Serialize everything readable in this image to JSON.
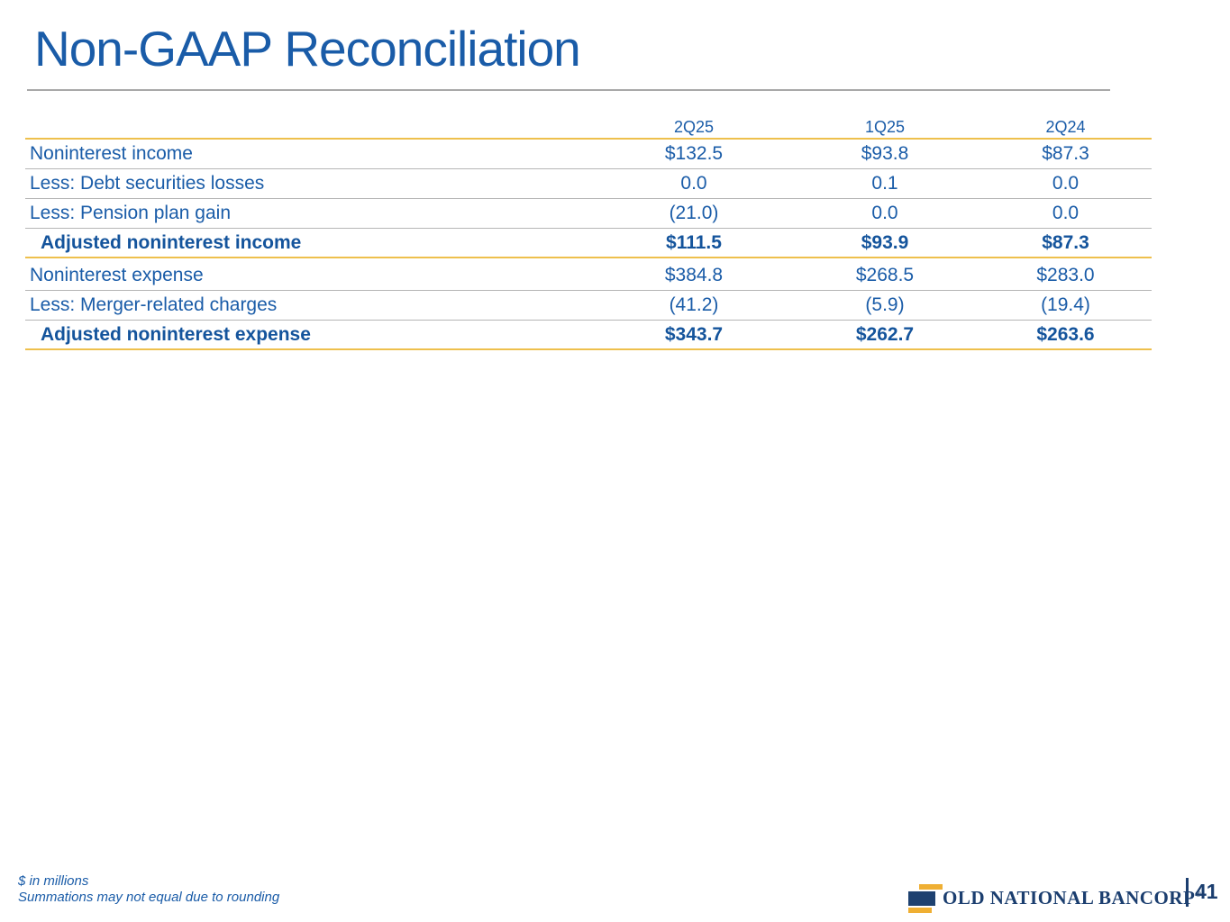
{
  "title": "Non-GAAP Reconciliation",
  "table": {
    "columns": [
      "2Q25",
      "1Q25",
      "2Q24"
    ],
    "sections": [
      {
        "rows": [
          {
            "label": "Noninterest income",
            "values": [
              "$132.5",
              "$93.8",
              "$87.3"
            ]
          },
          {
            "label": "Less: Debt securities losses",
            "values": [
              "0.0",
              "0.1",
              "0.0"
            ]
          },
          {
            "label": "Less: Pension plan gain",
            "values": [
              "(21.0)",
              "0.0",
              "0.0"
            ]
          },
          {
            "label": "Adjusted noninterest income",
            "values": [
              "$111.5",
              "$93.9",
              "$87.3"
            ]
          }
        ]
      },
      {
        "rows": [
          {
            "label": "Noninterest expense",
            "values": [
              "$384.8",
              "$268.5",
              "$283.0"
            ]
          },
          {
            "label": "Less: Merger-related charges",
            "values": [
              "(41.2)",
              "(5.9)",
              "(19.4)"
            ]
          },
          {
            "label": "Adjusted noninterest expense",
            "values": [
              "$343.7",
              "$262.7",
              "$263.6"
            ]
          }
        ]
      }
    ]
  },
  "footnotes": {
    "line1": "$ in millions",
    "line2": "Summations may not equal due to rounding"
  },
  "footer": {
    "logo_text": "OLD NATIONAL BANCORP",
    "registered_mark": "®",
    "page_number": "41"
  },
  "colors": {
    "accent_blue": "#1a5ca8",
    "total_navy": "#14549c",
    "gold_line": "#eec04d",
    "separator_gray": "#b5b5b5",
    "title_rule_gray": "#a8a8a8",
    "logo_navy": "#1b3e6f",
    "logo_gold": "#efaf33"
  }
}
